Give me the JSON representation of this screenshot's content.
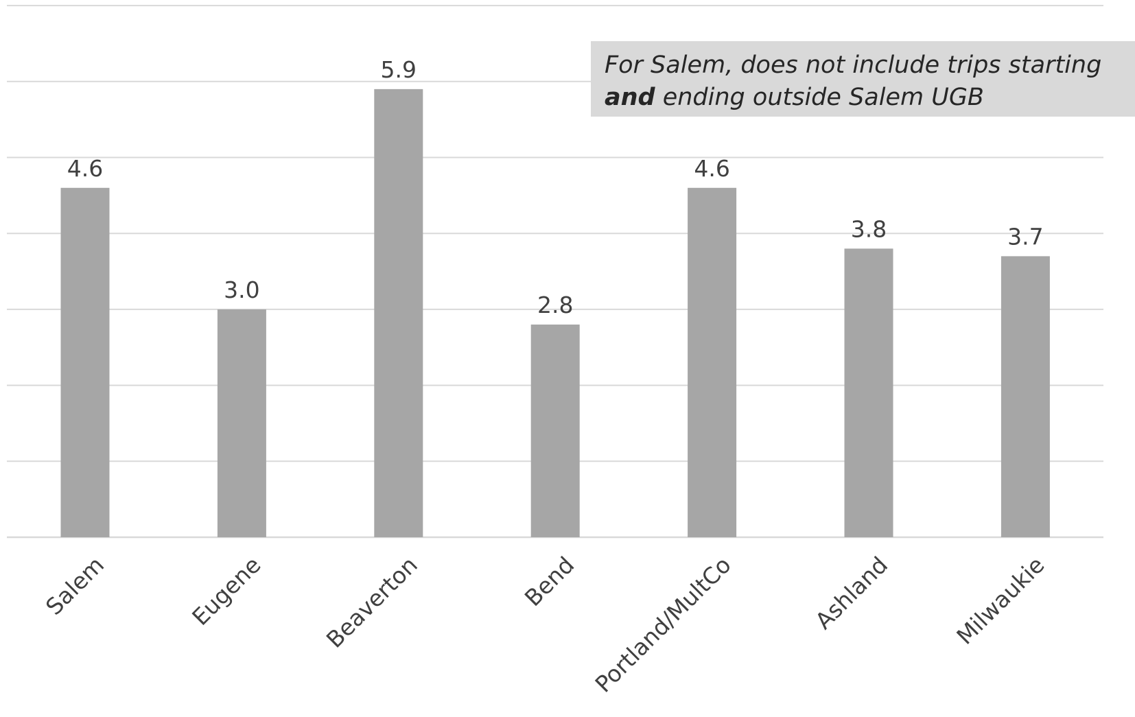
{
  "chart_data": {
    "type": "bar",
    "categories": [
      "Salem",
      "Eugene",
      "Beaverton",
      "Bend",
      "Portland/MultCo",
      "Ashland",
      "Milwaukie"
    ],
    "values": [
      4.6,
      3.0,
      5.9,
      2.8,
      4.6,
      3.8,
      3.7
    ],
    "data_labels": [
      "4.6",
      "3.0",
      "5.9",
      "2.8",
      "4.6",
      "3.8",
      "3.7"
    ],
    "ylim": [
      0,
      7
    ],
    "y_gridline_step": 1,
    "grid": true,
    "legend": "none",
    "bar_color": "#a6a6a6",
    "gridline_color": "#d9d9d9",
    "label_color": "#404040",
    "title": "",
    "xlabel": "",
    "ylabel": ""
  },
  "annotation": {
    "line1": "For Salem, does not include trips starting",
    "line2_bold": "and",
    "line2_rest": " ending outside Salem UGB",
    "background": "#d9d9d9"
  }
}
